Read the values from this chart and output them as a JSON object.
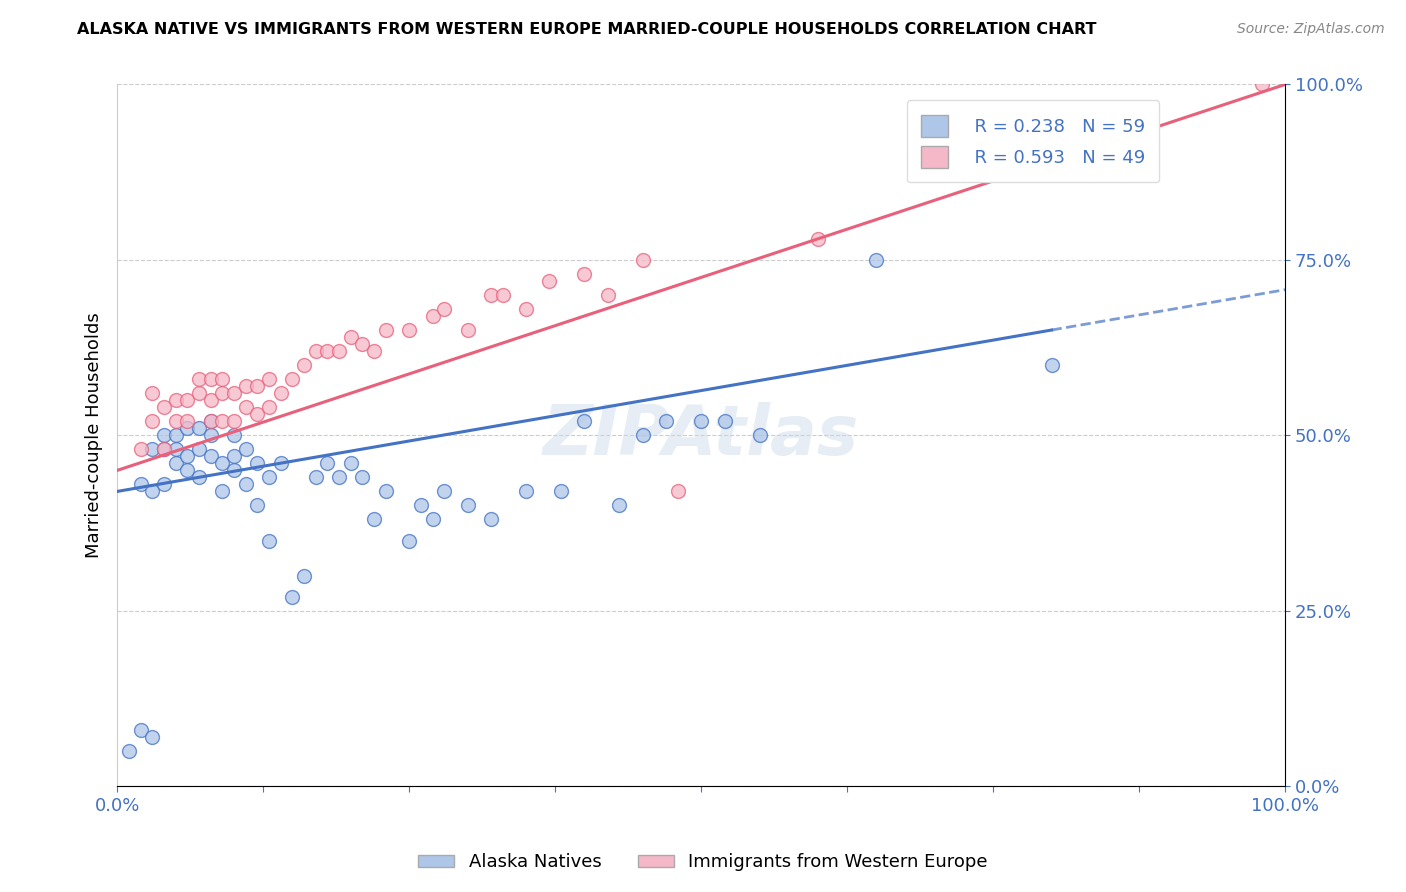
{
  "title": "ALASKA NATIVE VS IMMIGRANTS FROM WESTERN EUROPE MARRIED-COUPLE HOUSEHOLDS CORRELATION CHART",
  "source": "Source: ZipAtlas.com",
  "ylabel": "Married-couple Households",
  "watermark": "ZIPAtlas",
  "legend_r_blue": "R = 0.238",
  "legend_n_blue": "N = 59",
  "legend_r_pink": "R = 0.593",
  "legend_n_pink": "N = 49",
  "legend_label_blue": "Alaska Natives",
  "legend_label_pink": "Immigrants from Western Europe",
  "blue_color": "#aec6e8",
  "pink_color": "#f5b8c8",
  "trend_blue": "#4472c4",
  "trend_pink": "#e8607a",
  "background_color": "#ffffff",
  "grid_color": "#cccccc",
  "blue_points_x": [
    0.01,
    0.02,
    0.02,
    0.03,
    0.03,
    0.03,
    0.04,
    0.04,
    0.04,
    0.05,
    0.05,
    0.05,
    0.06,
    0.06,
    0.06,
    0.07,
    0.07,
    0.07,
    0.08,
    0.08,
    0.08,
    0.09,
    0.09,
    0.1,
    0.1,
    0.1,
    0.11,
    0.11,
    0.12,
    0.12,
    0.13,
    0.13,
    0.14,
    0.15,
    0.16,
    0.17,
    0.18,
    0.19,
    0.2,
    0.21,
    0.22,
    0.23,
    0.25,
    0.26,
    0.27,
    0.28,
    0.3,
    0.32,
    0.35,
    0.38,
    0.4,
    0.43,
    0.45,
    0.47,
    0.5,
    0.52,
    0.55,
    0.65,
    0.8
  ],
  "blue_points_y": [
    0.05,
    0.08,
    0.43,
    0.07,
    0.42,
    0.48,
    0.43,
    0.48,
    0.5,
    0.46,
    0.48,
    0.5,
    0.45,
    0.47,
    0.51,
    0.44,
    0.48,
    0.51,
    0.47,
    0.5,
    0.52,
    0.42,
    0.46,
    0.45,
    0.47,
    0.5,
    0.43,
    0.48,
    0.4,
    0.46,
    0.35,
    0.44,
    0.46,
    0.27,
    0.3,
    0.44,
    0.46,
    0.44,
    0.46,
    0.44,
    0.38,
    0.42,
    0.35,
    0.4,
    0.38,
    0.42,
    0.4,
    0.38,
    0.42,
    0.42,
    0.52,
    0.4,
    0.5,
    0.52,
    0.52,
    0.52,
    0.5,
    0.75,
    0.6
  ],
  "pink_points_x": [
    0.02,
    0.03,
    0.03,
    0.04,
    0.04,
    0.05,
    0.05,
    0.06,
    0.06,
    0.07,
    0.07,
    0.08,
    0.08,
    0.08,
    0.09,
    0.09,
    0.09,
    0.1,
    0.1,
    0.11,
    0.11,
    0.12,
    0.12,
    0.13,
    0.13,
    0.14,
    0.15,
    0.16,
    0.17,
    0.18,
    0.19,
    0.2,
    0.21,
    0.22,
    0.23,
    0.25,
    0.27,
    0.28,
    0.3,
    0.32,
    0.33,
    0.35,
    0.37,
    0.4,
    0.42,
    0.45,
    0.48,
    0.6,
    0.98
  ],
  "pink_points_y": [
    0.48,
    0.52,
    0.56,
    0.48,
    0.54,
    0.52,
    0.55,
    0.52,
    0.55,
    0.56,
    0.58,
    0.52,
    0.55,
    0.58,
    0.52,
    0.56,
    0.58,
    0.52,
    0.56,
    0.54,
    0.57,
    0.53,
    0.57,
    0.54,
    0.58,
    0.56,
    0.58,
    0.6,
    0.62,
    0.62,
    0.62,
    0.64,
    0.63,
    0.62,
    0.65,
    0.65,
    0.67,
    0.68,
    0.65,
    0.7,
    0.7,
    0.68,
    0.72,
    0.73,
    0.7,
    0.75,
    0.42,
    0.78,
    1.0
  ],
  "xlim": [
    0.0,
    1.0
  ],
  "ylim": [
    0.0,
    1.0
  ],
  "yticks": [
    0.0,
    0.25,
    0.5,
    0.75,
    1.0
  ],
  "xticks": [
    0.0,
    0.125,
    0.25,
    0.375,
    0.5,
    0.625,
    0.75,
    0.875,
    1.0
  ],
  "xtick_labels": [
    "0.0%",
    "",
    "",
    "",
    "",
    "",
    "",
    "",
    "100.0%"
  ],
  "blue_trend_x_start": 0.0,
  "blue_trend_x_end": 0.8,
  "pink_trend_x_start": 0.0,
  "pink_trend_x_end": 1.0
}
